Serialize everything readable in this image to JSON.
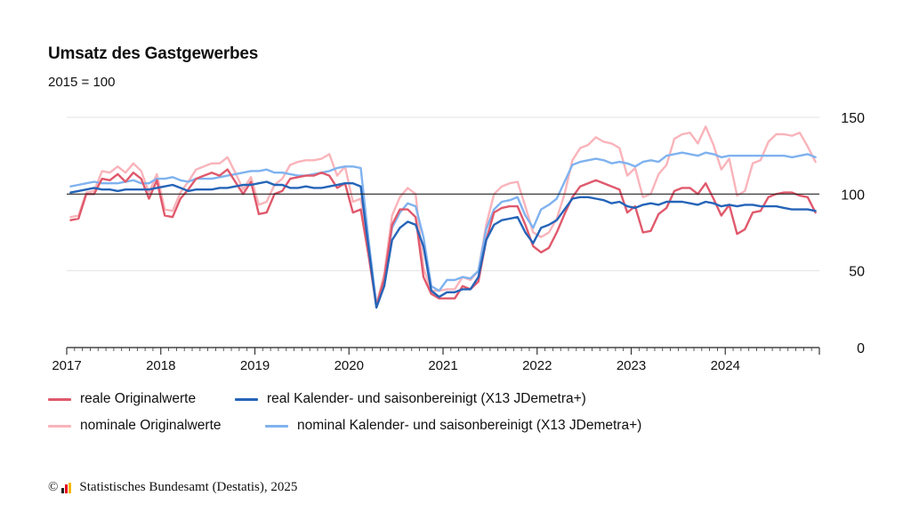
{
  "header": {
    "title": "Umsatz des Gastgewerbes",
    "subtitle": "2015 = 100"
  },
  "footer": {
    "copyright_symbol": "©",
    "source": "Statistisches Bundesamt (Destatis), 2025",
    "logo_icon": "destatis-logo-icon"
  },
  "colors": {
    "real_orig": "#e0596c",
    "real_sa": "#2564b8",
    "nominal_orig": "#f9b4ba",
    "nominal_sa": "#7fb2ef",
    "reference_line": "#222222",
    "grid": "#e3e3e3"
  },
  "chart_data": {
    "type": "line",
    "title": "Umsatz des Gastgewerbes",
    "subtitle": "2015 = 100",
    "xlabel": "",
    "ylabel": "",
    "x_start": "2017-01",
    "x_end": "2024-12",
    "x_ticks": [
      "2017",
      "2018",
      "2019",
      "2020",
      "2021",
      "2022",
      "2023",
      "2024"
    ],
    "y_ticks": [
      0,
      50,
      100,
      150
    ],
    "ylim": [
      0,
      150
    ],
    "reference_line": 100,
    "grid": true,
    "legend_position": "bottom",
    "series": [
      {
        "name": "reale Originalwerte",
        "color": "#e0596c",
        "values": [
          83,
          84,
          100,
          100,
          110,
          109,
          113,
          108,
          114,
          110,
          97,
          109,
          86,
          85,
          97,
          103,
          110,
          112,
          114,
          112,
          116,
          108,
          100,
          108,
          87,
          88,
          100,
          102,
          110,
          111,
          112,
          112,
          114,
          112,
          104,
          107,
          88,
          90,
          60,
          27,
          45,
          80,
          90,
          90,
          85,
          46,
          35,
          32,
          32,
          32,
          40,
          38,
          43,
          70,
          88,
          91,
          92,
          92,
          80,
          66,
          62,
          65,
          75,
          87,
          98,
          105,
          107,
          109,
          107,
          105,
          103,
          88,
          92,
          75,
          76,
          87,
          91,
          102,
          104,
          104,
          100,
          107,
          97,
          86,
          93,
          74,
          77,
          88,
          89,
          98,
          100,
          101,
          101,
          99,
          98,
          88
        ]
      },
      {
        "name": "real Kalender- und saisonbereinigt (X13 JDemetra+)",
        "color": "#2564b8",
        "values": [
          101,
          102,
          103,
          104,
          103,
          103,
          102,
          103,
          103,
          103,
          103,
          104,
          105,
          106,
          104,
          102,
          103,
          103,
          103,
          104,
          104,
          105,
          106,
          106,
          107,
          108,
          106,
          106,
          104,
          104,
          105,
          104,
          104,
          105,
          106,
          107,
          107,
          105,
          65,
          26,
          40,
          70,
          78,
          82,
          80,
          66,
          37,
          33,
          36,
          36,
          38,
          38,
          46,
          70,
          80,
          83,
          84,
          85,
          75,
          68,
          78,
          80,
          83,
          90,
          97,
          98,
          98,
          97,
          96,
          94,
          95,
          92,
          91,
          93,
          94,
          93,
          95,
          95,
          95,
          94,
          93,
          95,
          94,
          92,
          93,
          92,
          93,
          93,
          92,
          92,
          92,
          91,
          90,
          90,
          90,
          89
        ]
      },
      {
        "name": "nominale Originalwerte",
        "color": "#f9b4ba",
        "values": [
          85,
          86,
          101,
          102,
          115,
          114,
          118,
          114,
          120,
          115,
          101,
          113,
          90,
          89,
          101,
          108,
          116,
          118,
          120,
          120,
          124,
          114,
          103,
          111,
          93,
          95,
          106,
          110,
          119,
          121,
          122,
          122,
          123,
          126,
          112,
          118,
          95,
          97,
          65,
          28,
          48,
          86,
          98,
          104,
          100,
          52,
          37,
          37,
          38,
          38,
          46,
          44,
          50,
          80,
          100,
          105,
          107,
          108,
          92,
          75,
          72,
          75,
          84,
          100,
          122,
          130,
          132,
          137,
          134,
          133,
          130,
          112,
          117,
          98,
          100,
          113,
          119,
          136,
          139,
          140,
          133,
          144,
          132,
          116,
          123,
          99,
          102,
          120,
          122,
          134,
          139,
          139,
          138,
          140,
          131,
          121
        ]
      },
      {
        "name": "nominal Kalender- und saisonbereinigt (X13 JDemetra+)",
        "color": "#7fb2ef",
        "values": [
          105,
          106,
          107,
          108,
          107,
          107,
          107,
          108,
          109,
          107,
          107,
          110,
          110,
          111,
          109,
          108,
          110,
          110,
          110,
          111,
          112,
          113,
          114,
          115,
          115,
          116,
          114,
          114,
          113,
          112,
          112,
          113,
          114,
          115,
          117,
          118,
          118,
          117,
          70,
          28,
          44,
          78,
          88,
          94,
          92,
          72,
          40,
          37,
          44,
          44,
          46,
          45,
          50,
          77,
          90,
          95,
          96,
          98,
          86,
          78,
          90,
          93,
          97,
          108,
          119,
          121,
          122,
          123,
          122,
          120,
          121,
          120,
          118,
          121,
          122,
          121,
          125,
          126,
          127,
          126,
          125,
          127,
          126,
          124,
          125,
          125,
          125,
          125,
          125,
          125,
          125,
          125,
          124,
          125,
          126,
          124
        ]
      }
    ]
  }
}
